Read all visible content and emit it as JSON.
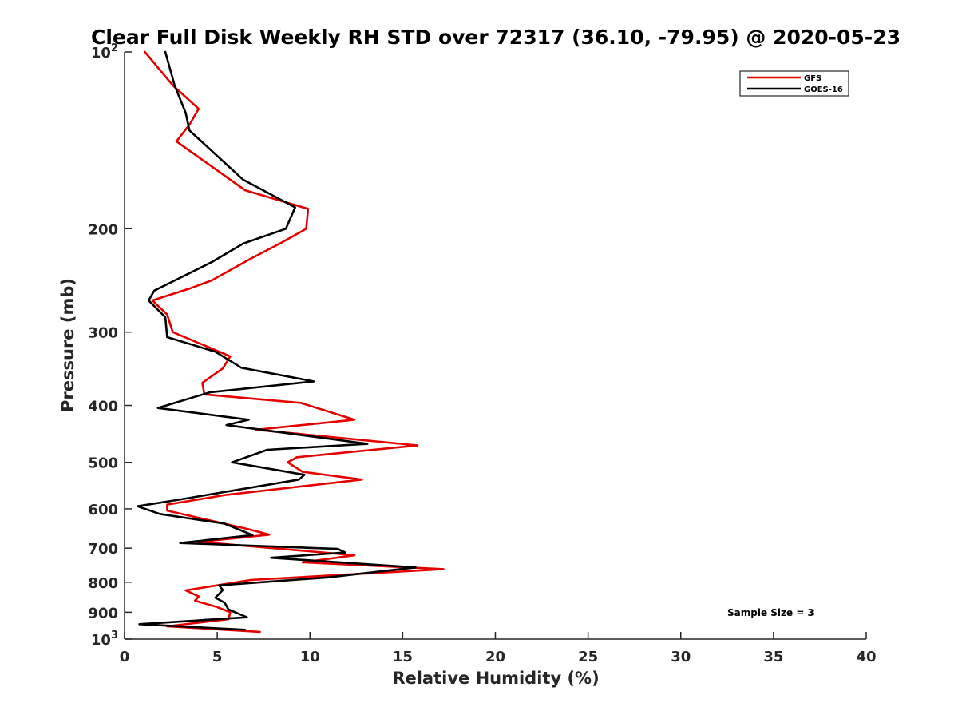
{
  "chart_data": {
    "type": "line",
    "title": "Clear Full Disk Weekly RH STD over 72317 (36.10, -79.95) @ 2020-05-23",
    "xlabel": "Relative Humidity (%)",
    "ylabel": "Pressure (mb)",
    "xlim": [
      0,
      40
    ],
    "ylim": [
      100,
      1000
    ],
    "y_scale": "log",
    "y_reversed": true,
    "grid": false,
    "legend_position": "top-right",
    "x_ticks": [
      0,
      5,
      10,
      15,
      20,
      25,
      30,
      35,
      40
    ],
    "x_tick_labels": [
      "0",
      "5",
      "10",
      "15",
      "20",
      "25",
      "30",
      "35",
      "40"
    ],
    "y_ticks": [
      100,
      200,
      300,
      400,
      500,
      600,
      700,
      800,
      900,
      1000
    ],
    "y_tick_labels": [
      {
        "base": "10",
        "sup": "2"
      },
      {
        "base": "200",
        "sup": ""
      },
      {
        "base": "300",
        "sup": ""
      },
      {
        "base": "400",
        "sup": ""
      },
      {
        "base": "500",
        "sup": ""
      },
      {
        "base": "600",
        "sup": ""
      },
      {
        "base": "700",
        "sup": ""
      },
      {
        "base": "800",
        "sup": ""
      },
      {
        "base": "900",
        "sup": ""
      },
      {
        "base": "10",
        "sup": "3"
      }
    ],
    "annotation": "Sample Size = 3",
    "series": [
      {
        "name": "GFS",
        "color": "#e50000",
        "points": [
          [
            1.1,
            100
          ],
          [
            2.6,
            114
          ],
          [
            4.0,
            125
          ],
          [
            3.5,
            133
          ],
          [
            2.8,
            142
          ],
          [
            6.5,
            172
          ],
          [
            9.9,
            185
          ],
          [
            9.8,
            200
          ],
          [
            8.5,
            211
          ],
          [
            6.8,
            225
          ],
          [
            4.7,
            245
          ],
          [
            3.5,
            253
          ],
          [
            1.5,
            265
          ],
          [
            2.3,
            280
          ],
          [
            2.6,
            300
          ],
          [
            5.7,
            330
          ],
          [
            5.3,
            346
          ],
          [
            4.2,
            366
          ],
          [
            4.3,
            383
          ],
          [
            9.5,
            396
          ],
          [
            12.4,
            423
          ],
          [
            7.1,
            440
          ],
          [
            15.8,
            468
          ],
          [
            9.3,
            490
          ],
          [
            8.8,
            500
          ],
          [
            9.6,
            519
          ],
          [
            12.8,
            535
          ],
          [
            5.5,
            568
          ],
          [
            2.3,
            590
          ],
          [
            2.3,
            604
          ],
          [
            6.7,
            650
          ],
          [
            7.8,
            664
          ],
          [
            4.0,
            683
          ],
          [
            9.4,
            706
          ],
          [
            12.4,
            720
          ],
          [
            9.6,
            740
          ],
          [
            17.2,
            760
          ],
          [
            6.8,
            793
          ],
          [
            5.0,
            810
          ],
          [
            3.3,
            826
          ],
          [
            4.0,
            846
          ],
          [
            3.8,
            860
          ],
          [
            5.0,
            882
          ],
          [
            5.7,
            900
          ],
          [
            5.6,
            925
          ],
          [
            2.3,
            951
          ],
          [
            7.3,
            972
          ]
        ]
      },
      {
        "name": "GOES-16",
        "color": "#000000",
        "points": [
          [
            2.2,
            100
          ],
          [
            2.7,
            114
          ],
          [
            3.3,
            127
          ],
          [
            3.5,
            136
          ],
          [
            6.4,
            165
          ],
          [
            9.2,
            184
          ],
          [
            8.7,
            200
          ],
          [
            6.4,
            212
          ],
          [
            4.7,
            228
          ],
          [
            1.6,
            255
          ],
          [
            1.3,
            265
          ],
          [
            2.2,
            283
          ],
          [
            2.3,
            306
          ],
          [
            4.9,
            324
          ],
          [
            6.3,
            345
          ],
          [
            10.2,
            364
          ],
          [
            4.6,
            380
          ],
          [
            1.8,
            404
          ],
          [
            6.7,
            423
          ],
          [
            5.5,
            432
          ],
          [
            13.1,
            465
          ],
          [
            7.7,
            476
          ],
          [
            5.8,
            500
          ],
          [
            9.7,
            525
          ],
          [
            9.4,
            535
          ],
          [
            2.9,
            579
          ],
          [
            0.7,
            594
          ],
          [
            1.9,
            612
          ],
          [
            5.4,
            636
          ],
          [
            6.9,
            665
          ],
          [
            3.0,
            686
          ],
          [
            11.5,
            702
          ],
          [
            11.9,
            712
          ],
          [
            7.9,
            727
          ],
          [
            15.7,
            755
          ],
          [
            11.0,
            785
          ],
          [
            5.1,
            810
          ],
          [
            5.3,
            825
          ],
          [
            4.9,
            850
          ],
          [
            5.4,
            867
          ],
          [
            5.6,
            890
          ],
          [
            6.6,
            918
          ],
          [
            0.8,
            943
          ],
          [
            6.5,
            964
          ]
        ]
      }
    ]
  }
}
